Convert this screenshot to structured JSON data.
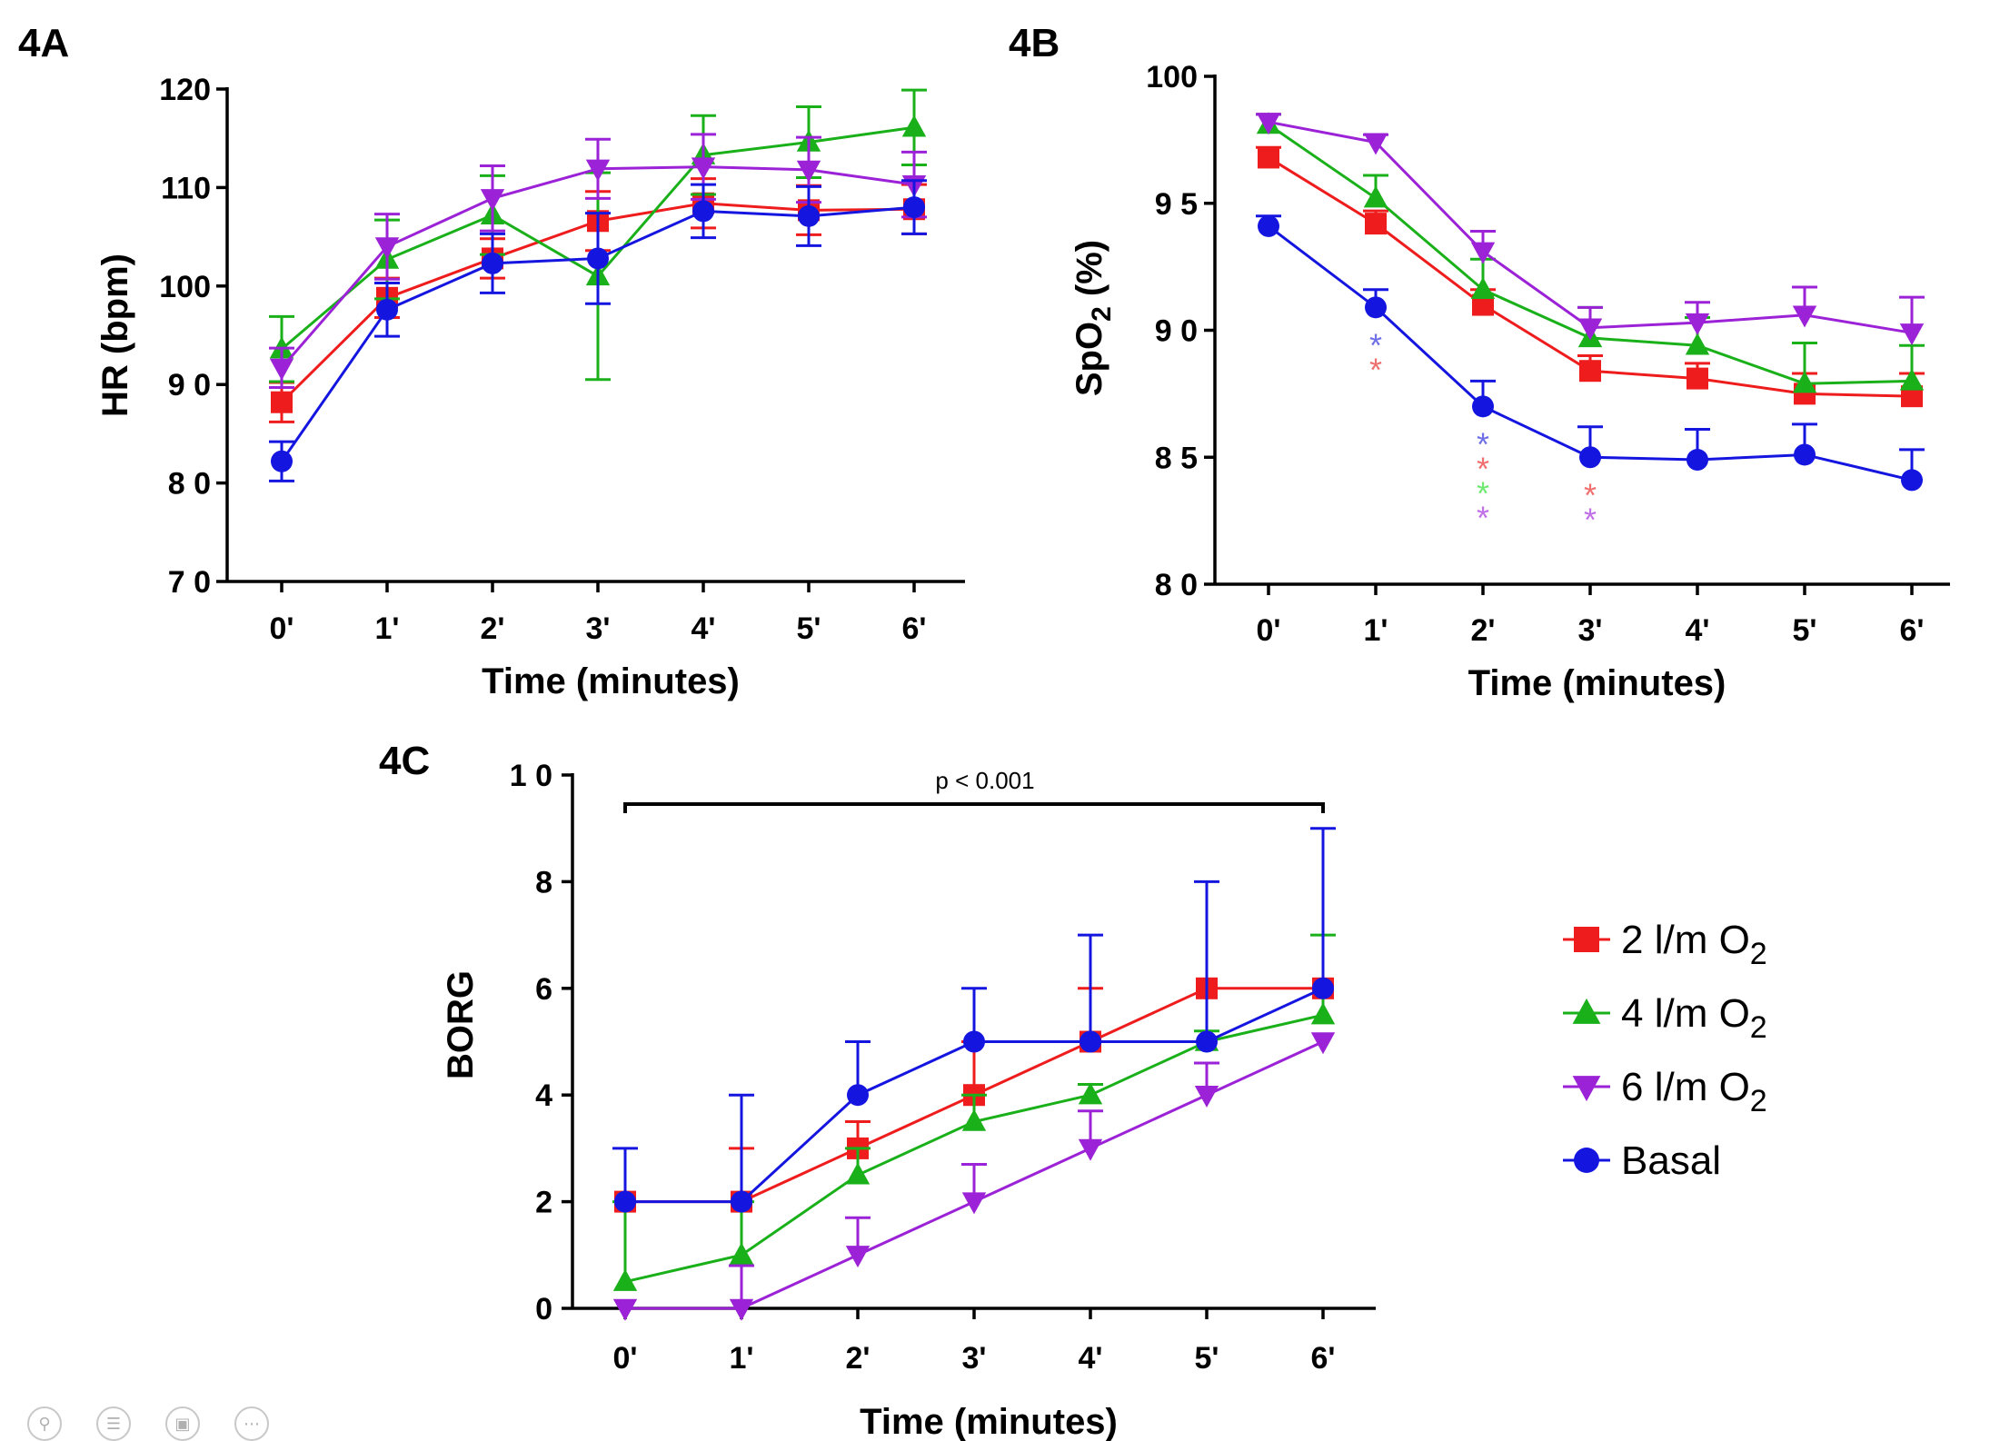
{
  "colors": {
    "red": "#ee1c1c",
    "green": "#1ab01a",
    "purple": "#9b22d6",
    "blue": "#1515e0",
    "star_blue": "#6f6fe8",
    "star_red": "#ef6f6f",
    "star_green": "#6fe86f",
    "star_purple": "#c06fe8"
  },
  "chart_data": [
    {
      "id": "4A",
      "type": "line",
      "panel_label": "4A",
      "xlabel": "Time (minutes)",
      "ylabel": "HR (bpm)",
      "categories": [
        "0'",
        "1'",
        "2'",
        "3'",
        "4'",
        "5'",
        "6'"
      ],
      "ylim": [
        70,
        120
      ],
      "yticks": [
        70,
        80,
        90,
        100,
        110,
        120
      ],
      "ytick_labels": [
        "7 0",
        "8 0",
        "9 0",
        "100",
        "110",
        "120"
      ],
      "series": [
        {
          "key": "o2_2",
          "color": "red",
          "marker": "square",
          "values": [
            88.2,
            98.8,
            102.8,
            106.6,
            108.4,
            107.7,
            107.8
          ],
          "err": [
            2.0,
            2.0,
            2.0,
            3.0,
            2.5,
            2.5,
            2.5
          ]
        },
        {
          "key": "o2_4",
          "color": "green",
          "marker": "triangle-up",
          "values": [
            93.6,
            102.7,
            107.2,
            101.0,
            113.3,
            114.6,
            116.1
          ],
          "err": [
            3.3,
            4.0,
            4.0,
            10.5,
            4.0,
            3.6,
            3.8
          ]
        },
        {
          "key": "o2_6",
          "color": "purple",
          "marker": "triangle-down",
          "values": [
            91.7,
            104.0,
            108.9,
            111.9,
            112.1,
            111.8,
            110.3
          ],
          "err": [
            2.0,
            3.3,
            3.3,
            3.0,
            3.3,
            3.3,
            3.3
          ]
        },
        {
          "key": "basal",
          "color": "blue",
          "marker": "circle",
          "values": [
            82.2,
            97.6,
            102.3,
            102.8,
            107.6,
            107.1,
            108.0
          ],
          "err": [
            2.0,
            2.7,
            3.0,
            4.6,
            2.7,
            3.0,
            2.7
          ]
        }
      ]
    },
    {
      "id": "4B",
      "type": "line",
      "panel_label": "4B",
      "xlabel": "Time (minutes)",
      "ylabel_main": "SpO",
      "ylabel_sub": "2",
      "ylabel_tail": " (%)",
      "categories": [
        "0'",
        "1'",
        "2'",
        "3'",
        "4'",
        "5'",
        "6'"
      ],
      "ylim": [
        80,
        100
      ],
      "yticks": [
        80,
        85,
        90,
        95,
        100
      ],
      "ytick_labels": [
        "8 0",
        "8 5",
        "9 0",
        "9 5",
        "100"
      ],
      "series": [
        {
          "key": "o2_2",
          "color": "red",
          "marker": "square",
          "values": [
            96.8,
            94.2,
            91.0,
            88.4,
            88.1,
            87.5,
            87.4
          ],
          "err": [
            0.4,
            0.5,
            0.6,
            0.6,
            0.6,
            0.8,
            0.9
          ]
        },
        {
          "key": "o2_4",
          "color": "green",
          "marker": "triangle-up",
          "values": [
            98.1,
            95.2,
            91.6,
            89.7,
            89.4,
            87.9,
            88.0
          ],
          "err": [
            0.4,
            0.9,
            1.2,
            1.2,
            1.1,
            1.6,
            1.4
          ]
        },
        {
          "key": "o2_6",
          "color": "purple",
          "marker": "triangle-down",
          "values": [
            98.2,
            97.4,
            93.1,
            90.1,
            90.3,
            90.6,
            89.9
          ],
          "err": [
            0.3,
            0.3,
            0.8,
            0.8,
            0.8,
            1.1,
            1.4
          ]
        },
        {
          "key": "basal",
          "color": "blue",
          "marker": "circle",
          "values": [
            94.1,
            90.9,
            87.0,
            85.0,
            84.9,
            85.1,
            84.1
          ],
          "err": [
            0.4,
            0.7,
            1.0,
            1.2,
            1.2,
            1.2,
            1.2
          ]
        }
      ],
      "significance": [
        {
          "x_index": 1,
          "stars": [
            {
              "text": "*",
              "color": "star_blue"
            },
            {
              "text": "*",
              "color": "star_red"
            }
          ]
        },
        {
          "x_index": 2,
          "stars": [
            {
              "text": "*",
              "color": "star_blue"
            },
            {
              "text": "*",
              "color": "star_red"
            },
            {
              "text": "*",
              "color": "star_green"
            },
            {
              "text": "*",
              "color": "star_purple"
            }
          ]
        },
        {
          "x_index": 3,
          "stars": [
            {
              "text": "*",
              "color": "star_red"
            },
            {
              "text": "*",
              "color": "star_purple"
            }
          ]
        }
      ]
    },
    {
      "id": "4C",
      "type": "line",
      "panel_label": "4C",
      "xlabel": "Time (minutes)",
      "ylabel": "BORG",
      "categories": [
        "0'",
        "1'",
        "2'",
        "3'",
        "4'",
        "5'",
        "6'"
      ],
      "ylim": [
        0,
        10
      ],
      "yticks": [
        0,
        2,
        4,
        6,
        8,
        10
      ],
      "ytick_labels": [
        "0",
        "2",
        "4",
        "6",
        "8",
        "1 0"
      ],
      "bracket_label": "p < 0.001",
      "series": [
        {
          "key": "o2_2",
          "color": "red",
          "marker": "square",
          "values": [
            2,
            2,
            3,
            4,
            5,
            6,
            6
          ],
          "err": [
            0,
            1,
            0.5,
            1,
            1,
            0,
            0
          ]
        },
        {
          "key": "o2_4",
          "color": "green",
          "marker": "triangle-up",
          "values": [
            0.5,
            1,
            2.5,
            3.5,
            4,
            5,
            5.5
          ],
          "err": [
            1.5,
            1,
            0.5,
            0.5,
            0.2,
            0.2,
            1.5
          ]
        },
        {
          "key": "o2_6",
          "color": "purple",
          "marker": "triangle-down",
          "values": [
            0,
            0,
            1,
            2,
            3,
            4,
            5
          ],
          "err": [
            0,
            0.8,
            0.7,
            0.7,
            0.7,
            0.6,
            0
          ]
        },
        {
          "key": "basal",
          "color": "blue",
          "marker": "circle",
          "values": [
            2,
            2,
            4,
            5,
            5,
            5,
            6
          ],
          "err": [
            1,
            2,
            1,
            1,
            2,
            3,
            3
          ]
        }
      ]
    }
  ],
  "legend": {
    "items": [
      {
        "key": "o2_2",
        "color": "red",
        "marker": "square",
        "main": "2 l/m O",
        "sub": "2"
      },
      {
        "key": "o2_4",
        "color": "green",
        "marker": "triangle-up",
        "main": "4 l/m O",
        "sub": "2"
      },
      {
        "key": "o2_6",
        "color": "purple",
        "marker": "triangle-down",
        "main": "6 l/m O",
        "sub": "2"
      },
      {
        "key": "basal",
        "color": "blue",
        "marker": "circle",
        "main": "Basal",
        "sub": ""
      }
    ]
  },
  "toolbar": {
    "icons": [
      "search-icon",
      "list-icon",
      "image-icon",
      "more-icon"
    ]
  }
}
